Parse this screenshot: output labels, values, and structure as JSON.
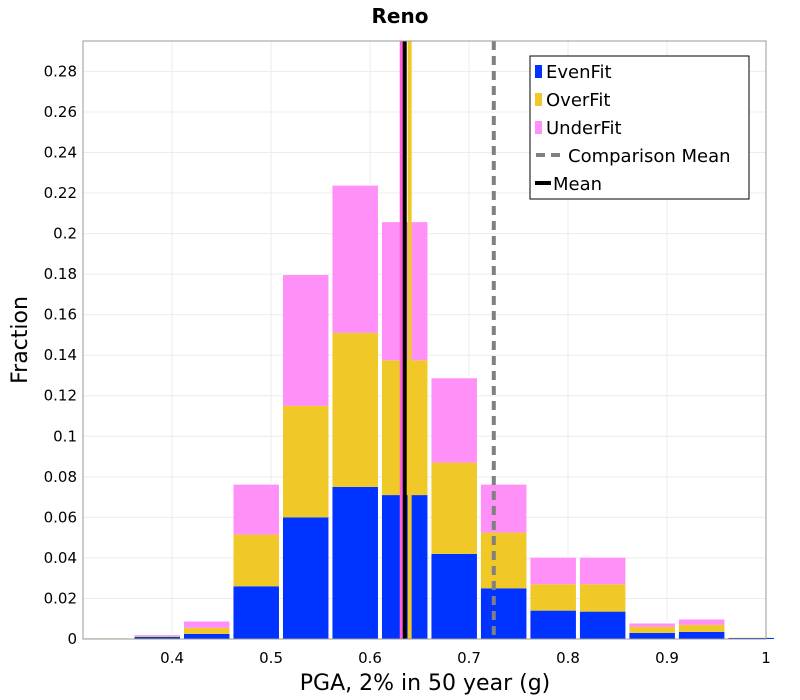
{
  "chart_data": {
    "type": "bar",
    "stacked": true,
    "title": "Reno",
    "xlabel": "PGA, 2% in 50 year (g)",
    "ylabel": "Fraction",
    "xlim": [
      0.31,
      1.0
    ],
    "ylim": [
      0,
      0.295
    ],
    "x_ticks": [
      0.4,
      0.5,
      0.6,
      0.7,
      0.8,
      0.9,
      1
    ],
    "y_ticks": [
      0,
      0.02,
      0.04,
      0.06,
      0.08,
      0.1,
      0.12,
      0.14,
      0.16,
      0.18,
      0.2,
      0.22,
      0.24,
      0.26,
      0.28
    ],
    "grid": true,
    "bin_width": 0.05,
    "bin_centers": [
      0.335,
      0.385,
      0.435,
      0.485,
      0.535,
      0.585,
      0.635,
      0.685,
      0.735,
      0.785,
      0.835,
      0.885,
      0.935,
      0.985
    ],
    "series": [
      {
        "name": "EvenFit",
        "color": "#0033ff",
        "values": [
          0.0003,
          0.001,
          0.0025,
          0.026,
          0.06,
          0.075,
          0.071,
          0.042,
          0.025,
          0.014,
          0.0135,
          0.003,
          0.0035,
          0.0005
        ]
      },
      {
        "name": "OverFit",
        "color": "#f0c828",
        "values": [
          0.0002,
          0.0005,
          0.003,
          0.0255,
          0.055,
          0.076,
          0.0665,
          0.045,
          0.0275,
          0.013,
          0.0135,
          0.003,
          0.0035,
          0.0003
        ]
      },
      {
        "name": "UnderFit",
        "color": "#ff90f8",
        "values": [
          0.0002,
          0.0008,
          0.0035,
          0.025,
          0.065,
          0.073,
          0.0685,
          0.042,
          0.024,
          0.0135,
          0.0135,
          0.002,
          0.003,
          0.0002
        ]
      }
    ],
    "reference_lines": [
      {
        "name": "Comparison Mean",
        "x": 0.725,
        "style": "dashed",
        "color": "#808080"
      },
      {
        "name": "Mean",
        "x": 0.635,
        "style": "solid",
        "color": "#000000"
      }
    ],
    "extra_lines": [
      {
        "x": 0.64,
        "color": "#f0c828"
      },
      {
        "x": 0.632,
        "color": "#ff60d8"
      }
    ],
    "legend_placement": "top-right"
  }
}
